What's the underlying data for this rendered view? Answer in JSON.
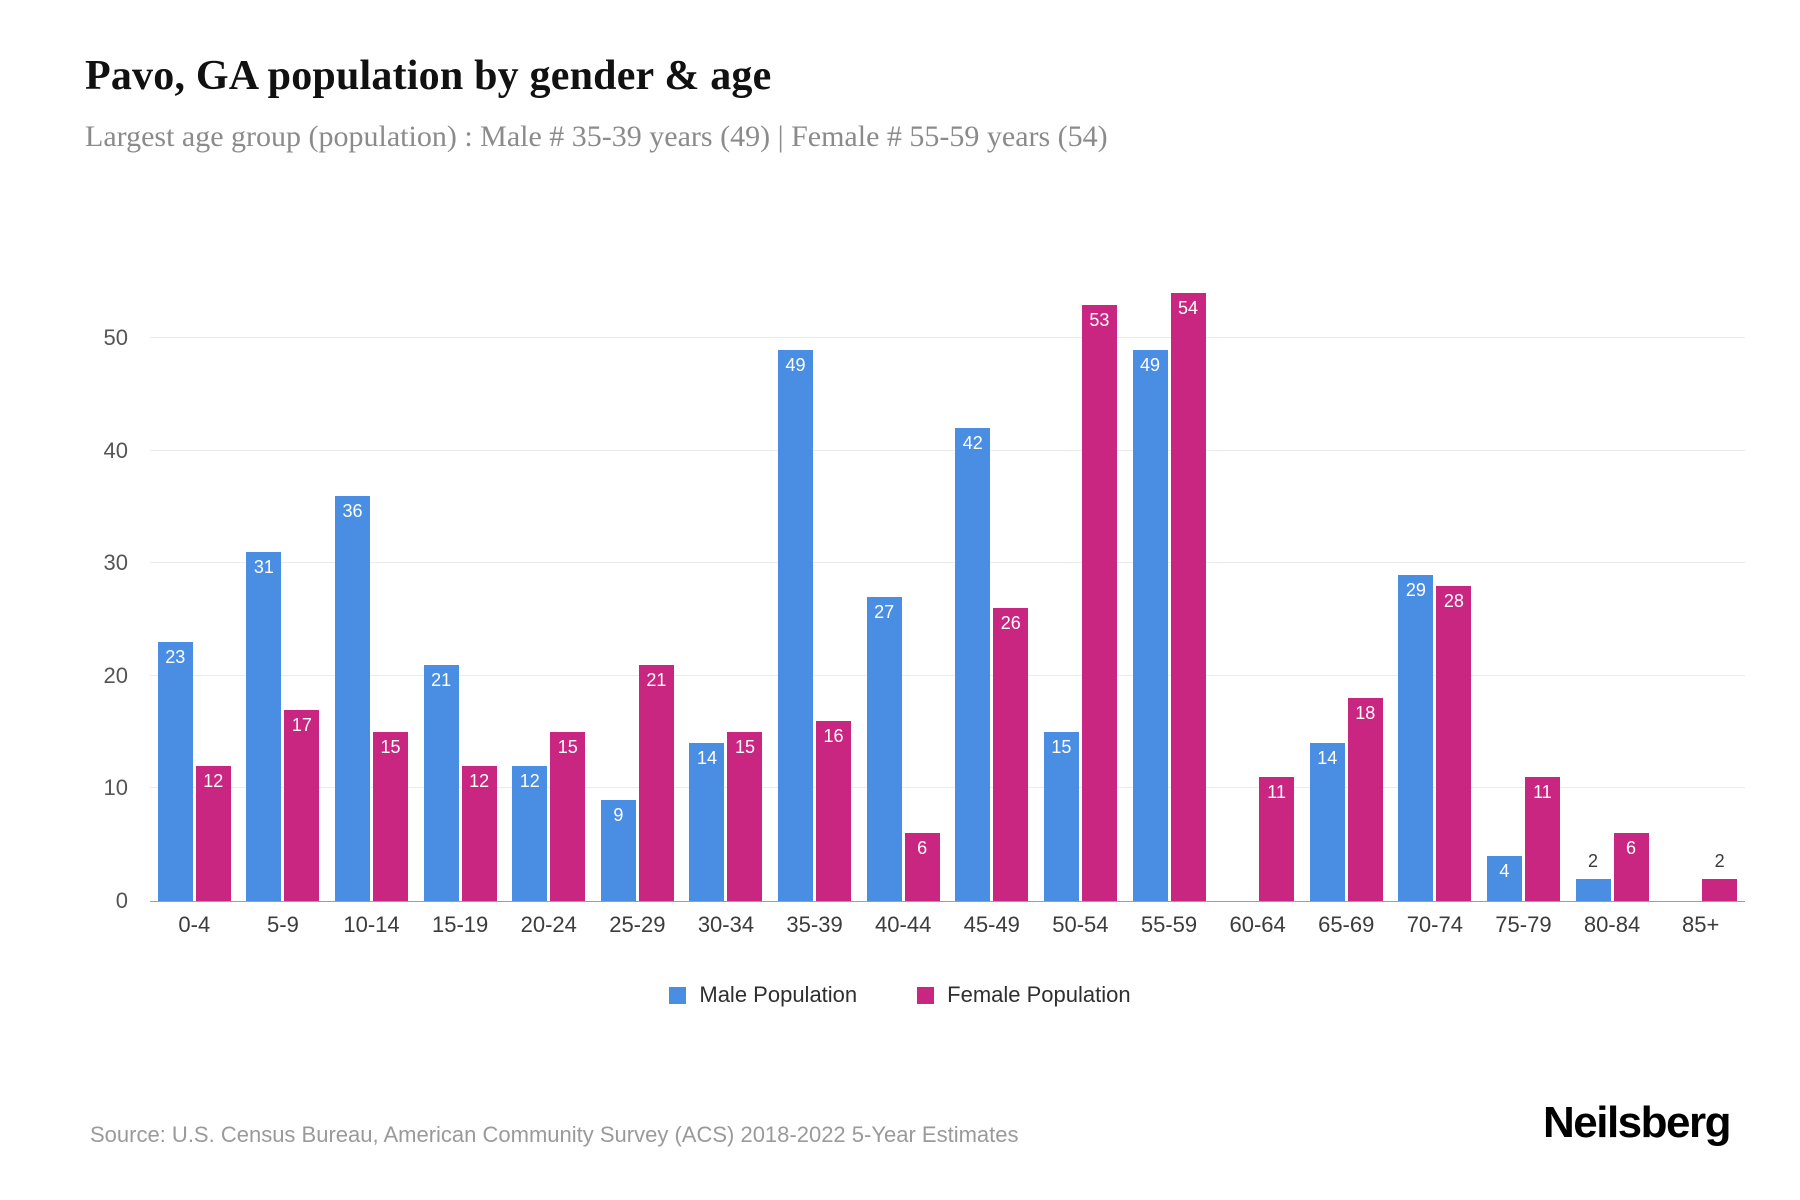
{
  "header": {
    "title": "Pavo, GA population by gender & age",
    "subtitle": "Largest age group (population) : Male # 35-39 years (49) | Female # 55-59 years (54)"
  },
  "chart_data": {
    "type": "bar",
    "title": "Pavo, GA population by gender & age",
    "categories": [
      "0-4",
      "5-9",
      "10-14",
      "15-19",
      "20-24",
      "25-29",
      "30-34",
      "35-39",
      "40-44",
      "45-49",
      "50-54",
      "55-59",
      "60-64",
      "65-69",
      "70-74",
      "75-79",
      "80-84",
      "85+"
    ],
    "series": [
      {
        "key": "male",
        "name": "Male Population",
        "color": "#4a8ee4",
        "values": [
          23,
          31,
          36,
          21,
          12,
          9,
          14,
          49,
          27,
          42,
          15,
          49,
          0,
          14,
          29,
          4,
          2,
          0
        ]
      },
      {
        "key": "female",
        "name": "Female Population",
        "color": "#c92682",
        "values": [
          12,
          17,
          15,
          12,
          15,
          21,
          15,
          16,
          6,
          26,
          53,
          54,
          11,
          18,
          28,
          11,
          6,
          2
        ]
      }
    ],
    "xlabel": "",
    "ylabel": "",
    "ylim": [
      0,
      55
    ],
    "yticks": [
      0,
      10,
      20,
      30,
      40,
      50
    ],
    "grid": true,
    "legend_position": "bottom",
    "value_labels": true
  },
  "footer": {
    "source": "Source: U.S. Census Bureau, American Community Survey (ACS) 2018-2022 5-Year Estimates",
    "brand": "Neilsberg"
  }
}
